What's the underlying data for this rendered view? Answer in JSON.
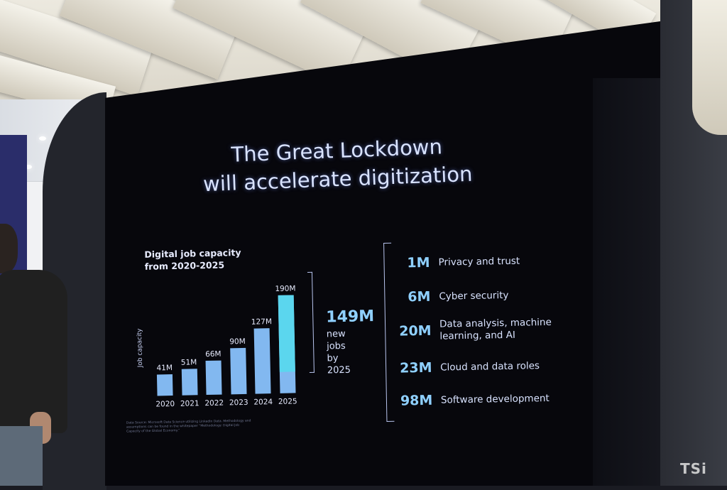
{
  "slide": {
    "title_line1": "The Great Lockdown",
    "title_line2": "will accelerate digitization",
    "source_note": "Data Source: Microsoft Data Science utilizing LinkedIn Data. Methodology and assumptions can be found in the whitepaper “Methodology: Digital Job Capacity of the Global Economy.”"
  },
  "chart_data": {
    "type": "bar",
    "title_line1": "Digital job capacity",
    "title_line2": "from 2020-2025",
    "ylabel": "Job capacity",
    "categories": [
      "2020",
      "2021",
      "2022",
      "2023",
      "2024",
      "2025"
    ],
    "values": [
      41,
      51,
      66,
      90,
      127,
      190
    ],
    "value_labels": [
      "41M",
      "51M",
      "66M",
      "90M",
      "127M",
      "190M"
    ],
    "ylim": [
      0,
      190
    ],
    "highlight_value": "149M",
    "highlight_text_line1": "new jobs",
    "highlight_text_line2": "by 2025",
    "colors": {
      "bar": "#82b8f0",
      "growth": "#5bd6ee"
    }
  },
  "breakdown": [
    {
      "value": "1M",
      "label_line1": "Privacy and trust",
      "label_line2": ""
    },
    {
      "value": "6M",
      "label_line1": "Cyber security",
      "label_line2": ""
    },
    {
      "value": "20M",
      "label_line1": "Data analysis, machine",
      "label_line2": "learning, and AI"
    },
    {
      "value": "23M",
      "label_line1": "Cloud and data roles",
      "label_line2": ""
    },
    {
      "value": "98M",
      "label_line1": "Software development",
      "label_line2": ""
    }
  ],
  "watermark": "TSi"
}
